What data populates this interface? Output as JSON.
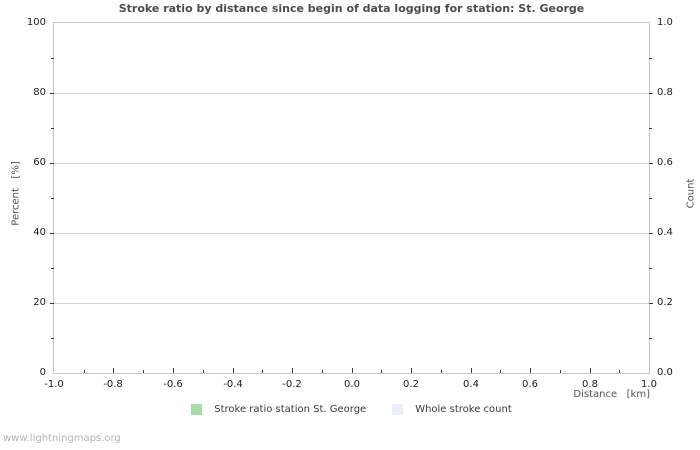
{
  "watermark": "www.lightningmaps.org",
  "colors": {
    "background": "#ffffff",
    "frame": "#c6c6c6",
    "gridline": "#d4d4d4",
    "tick_mark": "#3c3c3c",
    "tick_label": "#1c1c1c",
    "title_text": "#4d4d4d",
    "axis_title_text": "#555555",
    "legend_text": "#3a3a3a",
    "watermark_text": "#b4b4b4",
    "series_green": "#abdbab",
    "series_lavender": "#ededfb"
  },
  "chart_data": {
    "type": "line",
    "title": "Stroke ratio by distance since begin of data logging for station: St. George",
    "grid": "horizontal-only",
    "legend_position": "bottom-center",
    "plot_empty": true,
    "x_axis": {
      "label": "Distance   [km]",
      "min": -1.0,
      "max": 1.0,
      "minor_step": 0.1,
      "tick_values": [
        -1.0,
        -0.8,
        -0.6,
        -0.4,
        -0.2,
        0.0,
        0.2,
        0.4,
        0.6,
        0.8,
        1.0
      ],
      "tick_labels": [
        "-1.0",
        "-0.8",
        "-0.6",
        "-0.4",
        "-0.2",
        "0.0",
        "0.2",
        "0.4",
        "0.6",
        "0.8",
        "1.0"
      ]
    },
    "y_left": {
      "label": "Percent   [%]",
      "min": 0,
      "max": 100,
      "minor_step": 10,
      "tick_values": [
        0,
        20,
        40,
        60,
        80,
        100
      ],
      "tick_labels": [
        "0",
        "20",
        "40",
        "60",
        "80",
        "100"
      ]
    },
    "y_right": {
      "label": "Count",
      "min": 0.0,
      "max": 1.0,
      "minor_step": 0.1,
      "tick_values": [
        0.0,
        0.2,
        0.4,
        0.6,
        0.8,
        1.0
      ],
      "tick_labels": [
        "0.0",
        "0.2",
        "0.4",
        "0.6",
        "0.8",
        "1.0"
      ]
    },
    "series": [
      {
        "name": "Stroke ratio station St. George",
        "color": "#abdbab",
        "values": []
      },
      {
        "name": "Whole stroke count",
        "color": "#ededfb",
        "values": []
      }
    ]
  }
}
